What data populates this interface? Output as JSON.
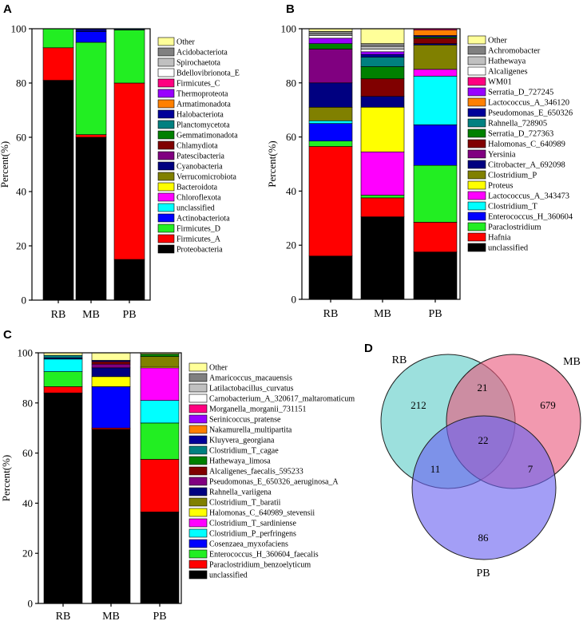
{
  "chart_data": [
    {
      "panel": "A",
      "type": "bar",
      "stacked": true,
      "ylabel": "Percent(%)",
      "ylim": [
        0,
        100
      ],
      "yticks": [
        0,
        20,
        40,
        60,
        80,
        100
      ],
      "categories": [
        "RB",
        "MB",
        "PB"
      ],
      "series": [
        {
          "name": "Proteobacteria",
          "color": "#000000",
          "values": [
            81,
            60,
            15
          ]
        },
        {
          "name": "Firmicutes_A",
          "color": "#ff0000",
          "values": [
            12,
            1,
            65
          ]
        },
        {
          "name": "Firmicutes_D",
          "color": "#22ee22",
          "values": [
            7,
            34,
            19.5
          ]
        },
        {
          "name": "Actinobacteriota",
          "color": "#0000ff",
          "values": [
            0,
            4,
            0.2
          ]
        },
        {
          "name": "unclassified",
          "color": "#00ffff",
          "values": [
            0,
            0,
            0.3
          ]
        },
        {
          "name": "Chloroflexota",
          "color": "#ff00ff",
          "values": [
            0,
            0,
            0
          ]
        },
        {
          "name": "Bacteroidota",
          "color": "#ffff00",
          "values": [
            0,
            0,
            0
          ]
        },
        {
          "name": "Verrucomicrobiota",
          "color": "#808000",
          "values": [
            0,
            0,
            0
          ]
        },
        {
          "name": "Cyanobacteria",
          "color": "#000080",
          "values": [
            0,
            1,
            0
          ]
        },
        {
          "name": "Patescibacteria",
          "color": "#800080",
          "values": [
            0,
            0,
            0
          ]
        },
        {
          "name": "Chlamydiota",
          "color": "#800000",
          "values": [
            0,
            0,
            0
          ]
        },
        {
          "name": "Gemmatimonadota",
          "color": "#008000",
          "values": [
            0,
            0,
            0
          ]
        },
        {
          "name": "Planctomycetota",
          "color": "#008080",
          "values": [
            0,
            0,
            0
          ]
        },
        {
          "name": "Halobacteriota",
          "color": "#000099",
          "values": [
            0,
            0,
            0
          ]
        },
        {
          "name": "Armatimonadota",
          "color": "#ff8000",
          "values": [
            0,
            0,
            0
          ]
        },
        {
          "name": "Thermoproteota",
          "color": "#9900ff",
          "values": [
            0,
            0,
            0
          ]
        },
        {
          "name": "Firmicutes_C",
          "color": "#ff0080",
          "values": [
            0,
            0,
            0
          ]
        },
        {
          "name": "Bdellovibrionota_E",
          "color": "#ffffff",
          "values": [
            0,
            0,
            0
          ]
        },
        {
          "name": "Spirochaetota",
          "color": "#c0c0c0",
          "values": [
            0,
            0,
            0
          ]
        },
        {
          "name": "Acidobacteriota",
          "color": "#808080",
          "values": [
            0,
            0,
            0
          ]
        },
        {
          "name": "Other",
          "color": "#ffff99",
          "values": [
            0,
            0,
            0
          ]
        }
      ]
    },
    {
      "panel": "B",
      "type": "bar",
      "stacked": true,
      "ylabel": "Percent(%)",
      "ylim": [
        0,
        100
      ],
      "yticks": [
        0,
        20,
        40,
        60,
        80,
        100
      ],
      "categories": [
        "RB",
        "MB",
        "PB"
      ],
      "series": [
        {
          "name": "unclassified",
          "color": "#000000",
          "values": [
            16,
            30.5,
            17.5
          ]
        },
        {
          "name": "Hafnia",
          "color": "#ff0000",
          "values": [
            40.5,
            7,
            11
          ]
        },
        {
          "name": "Paraclostridium",
          "color": "#22ee22",
          "values": [
            2,
            1,
            21
          ]
        },
        {
          "name": "Enterococcus_H_360604",
          "color": "#0000ff",
          "values": [
            6.5,
            0,
            15
          ]
        },
        {
          "name": "Clostridium_T",
          "color": "#00ffff",
          "values": [
            1,
            0,
            18
          ]
        },
        {
          "name": "Lactococcus_A_343473",
          "color": "#ff00ff",
          "values": [
            0,
            16,
            2.5
          ]
        },
        {
          "name": "Proteus",
          "color": "#ffff00",
          "values": [
            0,
            16.5,
            0
          ]
        },
        {
          "name": "Clostridium_P",
          "color": "#808000",
          "values": [
            5,
            0,
            9
          ]
        },
        {
          "name": "Citrobacter_A_692098",
          "color": "#000080",
          "values": [
            9,
            4,
            0.5
          ]
        },
        {
          "name": "Yersinia",
          "color": "#800080",
          "values": [
            12.5,
            0,
            0
          ]
        },
        {
          "name": "Halomonas_C_640989",
          "color": "#800000",
          "values": [
            0,
            6.5,
            2
          ]
        },
        {
          "name": "Serratia_D_727363",
          "color": "#008000",
          "values": [
            2,
            4.5,
            0.5
          ]
        },
        {
          "name": "Rahnella_728905",
          "color": "#008080",
          "values": [
            0,
            3.5,
            0
          ]
        },
        {
          "name": "Pseudomonas_E_650326",
          "color": "#000099",
          "values": [
            0,
            1,
            0.5
          ]
        },
        {
          "name": "Lactococcus_A_346120",
          "color": "#ff8000",
          "values": [
            0,
            0,
            2
          ]
        },
        {
          "name": "Serratia_D_727245",
          "color": "#9900ff",
          "values": [
            2,
            1,
            0
          ]
        },
        {
          "name": "WM01",
          "color": "#ff0080",
          "values": [
            0,
            0,
            0.5
          ]
        },
        {
          "name": "Alcaligenes",
          "color": "#ffffff",
          "values": [
            1,
            1,
            0
          ]
        },
        {
          "name": "Hathewaya",
          "color": "#c0c0c0",
          "values": [
            0.5,
            1,
            0
          ]
        },
        {
          "name": "Achromobacter",
          "color": "#808080",
          "values": [
            1,
            1,
            0
          ]
        },
        {
          "name": "Other",
          "color": "#ffff99",
          "values": [
            1,
            5.5,
            0
          ]
        }
      ]
    },
    {
      "panel": "C",
      "type": "bar",
      "stacked": true,
      "ylabel": "Percent(%)",
      "ylim": [
        0,
        100
      ],
      "yticks": [
        0,
        20,
        40,
        60,
        80,
        100
      ],
      "categories": [
        "RB",
        "MB",
        "PB"
      ],
      "series": [
        {
          "name": "unclassified",
          "color": "#000000",
          "values": [
            84,
            69.5,
            36.5
          ]
        },
        {
          "name": "Paraclostridium_benzoelyticum",
          "color": "#ff0000",
          "values": [
            2.5,
            0.5,
            21
          ]
        },
        {
          "name": "Enterococcus_H_360604_faecalis",
          "color": "#22ee22",
          "values": [
            6,
            0,
            14.5
          ]
        },
        {
          "name": "Cosenzaea_myxofaciens",
          "color": "#0000ff",
          "values": [
            0,
            16.5,
            0
          ]
        },
        {
          "name": "Clostridium_P_perfringens",
          "color": "#00ffff",
          "values": [
            5,
            0,
            9
          ]
        },
        {
          "name": "Clostridium_T_sardiniense",
          "color": "#ff00ff",
          "values": [
            0,
            0,
            13
          ]
        },
        {
          "name": "Halomonas_C_640989_stevensii",
          "color": "#ffff00",
          "values": [
            0,
            4,
            0.5
          ]
        },
        {
          "name": "Clostridium_T_baratii",
          "color": "#808000",
          "values": [
            0,
            0,
            4
          ]
        },
        {
          "name": "Rahnella_variigena",
          "color": "#000080",
          "values": [
            0.5,
            3.5,
            0
          ]
        },
        {
          "name": "Pseudomonas_E_650326_aeruginosa_A",
          "color": "#800080",
          "values": [
            0,
            1.5,
            0
          ]
        },
        {
          "name": "Alcaligenes_faecalis_595233",
          "color": "#800000",
          "values": [
            0,
            1,
            0
          ]
        },
        {
          "name": "Hathewaya_limosa",
          "color": "#008000",
          "values": [
            0,
            0,
            1
          ]
        },
        {
          "name": "Clostridium_T_cagae",
          "color": "#008080",
          "values": [
            1,
            0,
            0
          ]
        },
        {
          "name": "Kluyvera_georgiana",
          "color": "#000099",
          "values": [
            0,
            0.5,
            0
          ]
        },
        {
          "name": "Nakamurella_multipartita",
          "color": "#ff8000",
          "values": [
            0,
            0,
            0
          ]
        },
        {
          "name": "Serinicoccus_pratense",
          "color": "#9900ff",
          "values": [
            0,
            0,
            0
          ]
        },
        {
          "name": "Morganella_morganii_731151",
          "color": "#ff0080",
          "values": [
            0,
            0,
            0
          ]
        },
        {
          "name": "Carnobacterium_A_320617_maltaromaticum",
          "color": "#ffffff",
          "values": [
            0,
            0,
            0
          ]
        },
        {
          "name": "Latilactobacillus_curvatus",
          "color": "#c0c0c0",
          "values": [
            0,
            0,
            0
          ]
        },
        {
          "name": "Amaricoccus_macauensis",
          "color": "#808080",
          "values": [
            0,
            0,
            0
          ]
        },
        {
          "name": "Other",
          "color": "#ffff99",
          "values": [
            1,
            3,
            0.5
          ]
        }
      ]
    },
    {
      "panel": "D",
      "type": "venn",
      "sets": [
        {
          "name": "RB",
          "color": "#5fcdc8"
        },
        {
          "name": "MB",
          "color": "#ea5a7e"
        },
        {
          "name": "PB",
          "color": "#6b63f0"
        }
      ],
      "regions": {
        "RB_only": 212,
        "MB_only": 679,
        "PB_only": 86,
        "RB_MB": 21,
        "RB_PB": 11,
        "MB_PB": 7,
        "RB_MB_PB": 22
      }
    }
  ]
}
